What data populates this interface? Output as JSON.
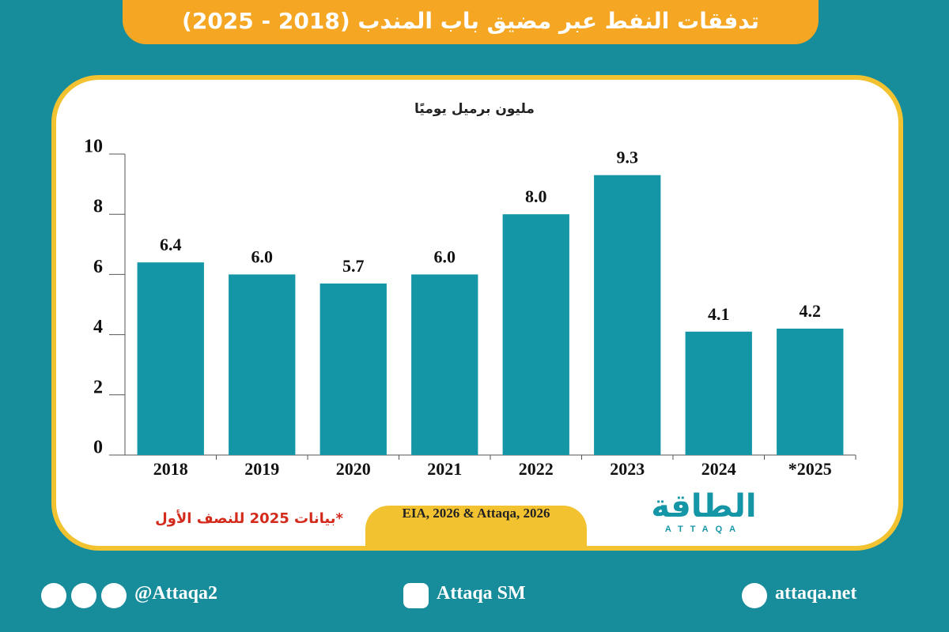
{
  "chart_data": {
    "type": "bar",
    "title": "تدفقات النفط عبر مضيق باب المندب (2018 - 2025)",
    "unit_label": "مليون برميل يوميًا",
    "categories": [
      "2018",
      "2019",
      "2020",
      "2021",
      "2022",
      "2023",
      "2024",
      "*2025"
    ],
    "values": [
      6.4,
      6.0,
      5.7,
      6.0,
      8.0,
      9.3,
      4.1,
      4.2
    ],
    "value_labels": [
      "6.4",
      "6.0",
      "5.7",
      "6.0",
      "8.0",
      "9.3",
      "4.1",
      "4.2"
    ],
    "color": "#1596a6",
    "ylim": [
      0,
      10
    ],
    "yticks": [
      0,
      2,
      4,
      6,
      8,
      10
    ],
    "grid": false,
    "note": "*بيانات 2025 للنصف الأول",
    "source": "EIA, 2026 & Attaqa, 2026"
  },
  "logo": {
    "name": "الطاقة",
    "latin": "ATTAQA"
  },
  "footer": {
    "social": "@Attaqa2",
    "youtube": "Attaqa SM",
    "website": "attaqa.net"
  }
}
